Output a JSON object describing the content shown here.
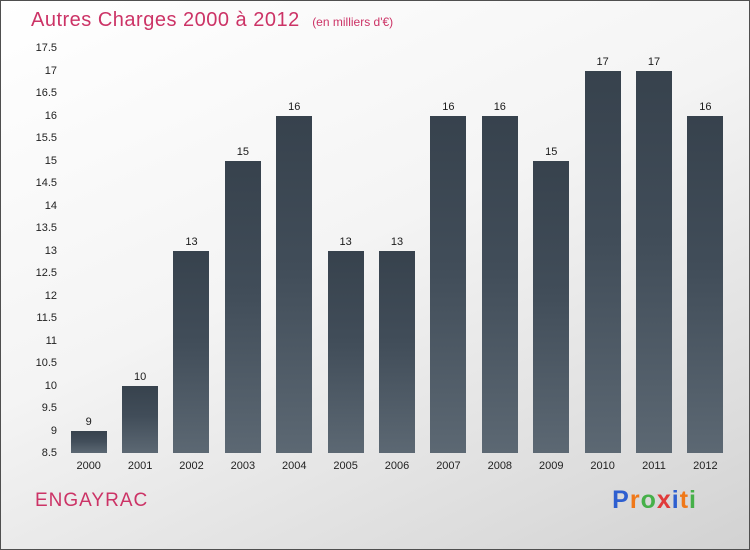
{
  "header": {
    "title": "Autres Charges 2000 à 2012",
    "subtitle": "(en milliers d'€)"
  },
  "footer": {
    "company": "ENGAYRAC",
    "logo_letters": [
      {
        "ch": "P",
        "color": "#2e5fd0"
      },
      {
        "ch": "r",
        "color": "#f07818"
      },
      {
        "ch": "o",
        "color": "#46b049"
      },
      {
        "ch": "x",
        "color": "#e03a3a"
      },
      {
        "ch": "i",
        "color": "#2e5fd0"
      },
      {
        "ch": "t",
        "color": "#f07818"
      },
      {
        "ch": "i",
        "color": "#46b049"
      }
    ]
  },
  "colors": {
    "accent_pink": "#cc3366",
    "bar_top": "#37424d",
    "bar_bottom": "#5c6873",
    "tick_text": "#222222"
  },
  "chart_data": {
    "type": "bar",
    "title": "Autres Charges 2000 à 2012 (en milliers d'€)",
    "categories": [
      "2000",
      "2001",
      "2002",
      "2003",
      "2004",
      "2005",
      "2006",
      "2007",
      "2008",
      "2009",
      "2010",
      "2011",
      "2012"
    ],
    "values": [
      9,
      10,
      13,
      15,
      16,
      13,
      13,
      16,
      16,
      15,
      17,
      17,
      16
    ],
    "xlabel": "",
    "ylabel": "",
    "ylim": [
      8.5,
      17.5
    ],
    "ytick_step": 0.5,
    "grid": false,
    "legend": false,
    "bar_labels_shown": true
  }
}
